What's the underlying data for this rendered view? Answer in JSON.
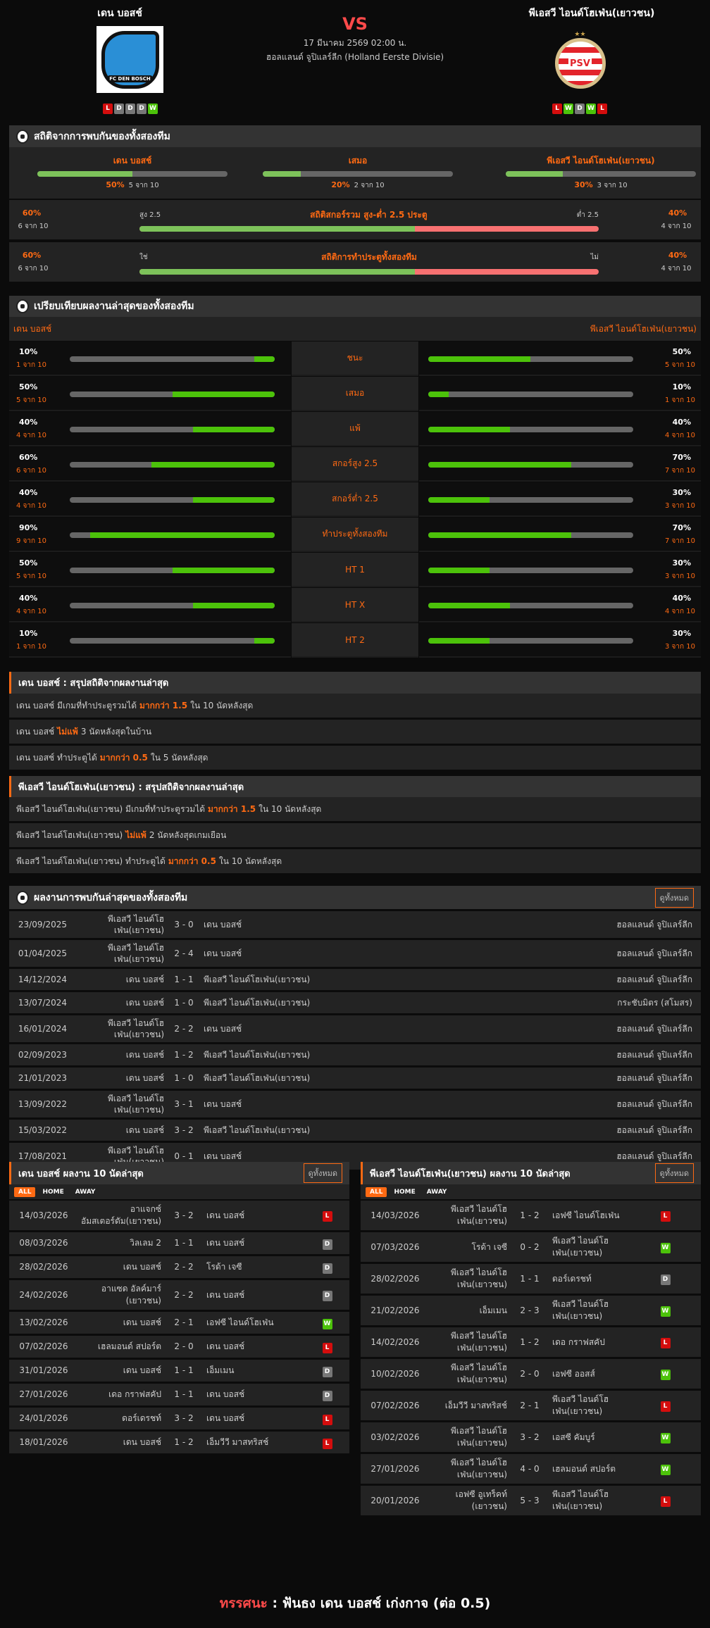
{
  "match": {
    "home": "เดน บอสช์",
    "away": "พีเอสวี ไอนด์โฮเฟ่น(เยาวชน)",
    "vs": "VS",
    "datetime": "17 มีนาคม 2569 02:00 น.",
    "league": "ฮอลแลนด์ จูปิแลร์ลีก (Holland Eerste Divisie)",
    "home_form": [
      "L",
      "D",
      "D",
      "D",
      "W"
    ],
    "away_form": [
      "L",
      "W",
      "D",
      "W",
      "L"
    ],
    "home_logo_text": "FC DEN BOSCH",
    "away_logo_text": "PSV"
  },
  "h2h_stats": {
    "title": "สถิติจากการพบกันของทั้งสองทีม",
    "items": [
      {
        "label": "เดน บอสช์",
        "pct": "50%",
        "count": "5 จาก 10",
        "value": 50
      },
      {
        "label": "เสมอ",
        "pct": "20%",
        "count": "2 จาก 10",
        "value": 20
      },
      {
        "label": "พีเอสวี ไอนด์โฮเฟ่น(เยาวชน)",
        "pct": "30%",
        "count": "3 จาก 10",
        "value": 30
      }
    ],
    "ou": {
      "title": "สถิติสกอร์รวม สูง-ต่ำ 2.5 ประตู",
      "left_label": "สูง 2.5",
      "right_label": "ต่ำ 2.5",
      "left_pct": "60%",
      "left_count": "6 จาก 10",
      "right_pct": "40%",
      "right_count": "4 จาก 10",
      "value": 60
    },
    "btts": {
      "title": "สถิติการทำประตูทั้งสองทีม",
      "left_label": "ใช่",
      "right_label": "ไม่",
      "left_pct": "60%",
      "left_count": "6 จาก 10",
      "right_pct": "40%",
      "right_count": "4 จาก 10",
      "value": 60
    }
  },
  "compare": {
    "title": "เปรียบเทียบผลงานล่าสุดของทั้งสองทีม",
    "home": "เดน บอสช์",
    "away": "พีเอสวี ไอนด์โฮเฟ่น(เยาวชน)",
    "rows": [
      {
        "label": "ชนะ",
        "l_pct": "10%",
        "l_cnt": "1 จาก 10",
        "l": 10,
        "r_pct": "50%",
        "r_cnt": "5 จาก 10",
        "r": 50
      },
      {
        "label": "เสมอ",
        "l_pct": "50%",
        "l_cnt": "5 จาก 10",
        "l": 50,
        "r_pct": "10%",
        "r_cnt": "1 จาก 10",
        "r": 10
      },
      {
        "label": "แพ้",
        "l_pct": "40%",
        "l_cnt": "4 จาก 10",
        "l": 40,
        "r_pct": "40%",
        "r_cnt": "4 จาก 10",
        "r": 40
      },
      {
        "label": "สกอร์สูง 2.5",
        "l_pct": "60%",
        "l_cnt": "6 จาก 10",
        "l": 60,
        "r_pct": "70%",
        "r_cnt": "7 จาก 10",
        "r": 70
      },
      {
        "label": "สกอร์ต่ำ 2.5",
        "l_pct": "40%",
        "l_cnt": "4 จาก 10",
        "l": 40,
        "r_pct": "30%",
        "r_cnt": "3 จาก 10",
        "r": 30
      },
      {
        "label": "ทำประตูทั้งสองทีม",
        "l_pct": "90%",
        "l_cnt": "9 จาก 10",
        "l": 90,
        "r_pct": "70%",
        "r_cnt": "7 จาก 10",
        "r": 70
      },
      {
        "label": "HT 1",
        "l_pct": "50%",
        "l_cnt": "5 จาก 10",
        "l": 50,
        "r_pct": "30%",
        "r_cnt": "3 จาก 10",
        "r": 30
      },
      {
        "label": "HT X",
        "l_pct": "40%",
        "l_cnt": "4 จาก 10",
        "l": 40,
        "r_pct": "40%",
        "r_cnt": "4 จาก 10",
        "r": 40
      },
      {
        "label": "HT 2",
        "l_pct": "10%",
        "l_cnt": "1 จาก 10",
        "l": 10,
        "r_pct": "30%",
        "r_cnt": "3 จาก 10",
        "r": 30
      }
    ]
  },
  "summary_home": {
    "title": "เดน บอสช์ : สรุปสถิติจากผลงานล่าสุด",
    "rows": [
      {
        "pre": "เดน บอสช์  มีเกมที่ทำประตูรวมได้",
        "hl": "มากกว่า 1.5",
        "post": "ใน 10 นัดหลังสุด"
      },
      {
        "pre": "เดน บอสช์",
        "hl": "ไม่แพ้",
        "post": "3  นัดหลังสุดในบ้าน"
      },
      {
        "pre": "เดน บอสช์  ทำประตูได้",
        "hl": "มากกว่า 0.5",
        "post": "ใน 5 นัดหลังสุด"
      }
    ]
  },
  "summary_away": {
    "title": "พีเอสวี ไอนด์โฮเฟ่น(เยาวชน) : สรุปสถิติจากผลงานล่าสุด",
    "rows": [
      {
        "pre": "พีเอสวี ไอนด์โฮเฟ่น(เยาวชน)  มีเกมที่ทำประตูรวมได้",
        "hl": "มากกว่า 1.5",
        "post": "ใน 10 นัดหลังสุด"
      },
      {
        "pre": "พีเอสวี ไอนด์โฮเฟ่น(เยาวชน)",
        "hl": "ไม่แพ้",
        "post": "2  นัดหลังสุดเกมเยือน"
      },
      {
        "pre": "พีเอสวี ไอนด์โฮเฟ่น(เยาวชน)  ทำประตูได้",
        "hl": "มากกว่า 0.5",
        "post": "ใน 10 นัดหลังสุด"
      }
    ]
  },
  "h2h": {
    "title": "ผลงานการพบกันล่าสุดของทั้งสองทีม",
    "view_all": "ดูทั้งหมด",
    "rows": [
      [
        "23/09/2025",
        "พีเอสวี ไอนด์โฮเฟ่น(เยาวชน)",
        "3 - 0",
        "เดน บอสช์",
        "ฮอลแลนด์ จูปิแลร์ลีก"
      ],
      [
        "01/04/2025",
        "พีเอสวี ไอนด์โฮเฟ่น(เยาวชน)",
        "2 - 4",
        "เดน บอสช์",
        "ฮอลแลนด์ จูปิแลร์ลีก"
      ],
      [
        "14/12/2024",
        "เดน บอสช์",
        "1 - 1",
        "พีเอสวี ไอนด์โฮเฟ่น(เยาวชน)",
        "ฮอลแลนด์ จูปิแลร์ลีก"
      ],
      [
        "13/07/2024",
        "เดน บอสช์",
        "1 - 0",
        "พีเอสวี ไอนด์โฮเฟ่น(เยาวชน)",
        "กระชับมิตร (สโมสร)"
      ],
      [
        "16/01/2024",
        "พีเอสวี ไอนด์โฮเฟ่น(เยาวชน)",
        "2 - 2",
        "เดน บอสช์",
        "ฮอลแลนด์ จูปิแลร์ลีก"
      ],
      [
        "02/09/2023",
        "เดน บอสช์",
        "1 - 2",
        "พีเอสวี ไอนด์โฮเฟ่น(เยาวชน)",
        "ฮอลแลนด์ จูปิแลร์ลีก"
      ],
      [
        "21/01/2023",
        "เดน บอสช์",
        "1 - 0",
        "พีเอสวี ไอนด์โฮเฟ่น(เยาวชน)",
        "ฮอลแลนด์ จูปิแลร์ลีก"
      ],
      [
        "13/09/2022",
        "พีเอสวี ไอนด์โฮเฟ่น(เยาวชน)",
        "3 - 1",
        "เดน บอสช์",
        "ฮอลแลนด์ จูปิแลร์ลีก"
      ],
      [
        "15/03/2022",
        "เดน บอสช์",
        "3 - 2",
        "พีเอสวี ไอนด์โฮเฟ่น(เยาวชน)",
        "ฮอลแลนด์ จูปิแลร์ลีก"
      ],
      [
        "17/08/2021",
        "พีเอสวี ไอนด์โฮเฟ่น(เยาวชน)",
        "0 - 1",
        "เดน บอสช์",
        "ฮอลแลนด์ จูปิแลร์ลีก"
      ]
    ]
  },
  "recent_home": {
    "title": "เดน บอสช์ ผลงาน 10 นัดล่าสุด",
    "view_all": "ดูทั้งหมด",
    "tabs": [
      "ALL",
      "HOME",
      "AWAY"
    ],
    "rows": [
      [
        "14/03/2026",
        "อาแจกซ์ อัมสเตอร์ดัม(เยาวชน)",
        "3 - 2",
        "เดน บอสช์",
        "L"
      ],
      [
        "08/03/2026",
        "วิลเลม 2",
        "1 - 1",
        "เดน บอสช์",
        "D"
      ],
      [
        "28/02/2026",
        "เดน บอสช์",
        "2 - 2",
        "โรด้า เจซี",
        "D"
      ],
      [
        "24/02/2026",
        "อาแซด อัลค์มาร์ (เยาวชน)",
        "2 - 2",
        "เดน บอสช์",
        "D"
      ],
      [
        "13/02/2026",
        "เดน บอสช์",
        "2 - 1",
        "เอฟซี ไอนด์โฮเฟ่น",
        "W"
      ],
      [
        "07/02/2026",
        "เฮลมอนด์ สปอร์ต",
        "2 - 0",
        "เดน บอสช์",
        "L"
      ],
      [
        "31/01/2026",
        "เดน บอสช์",
        "1 - 1",
        "เอ็มเมน",
        "D"
      ],
      [
        "27/01/2026",
        "เดอ กราฟสคัป",
        "1 - 1",
        "เดน บอสช์",
        "D"
      ],
      [
        "24/01/2026",
        "ดอร์เดรชท์",
        "3 - 2",
        "เดน บอสช์",
        "L"
      ],
      [
        "18/01/2026",
        "เดน บอสช์",
        "1 - 2",
        "เอ็มวีวี มาสทริสช์",
        "L"
      ]
    ]
  },
  "recent_away": {
    "title": "พีเอสวี ไอนด์โฮเฟ่น(เยาวชน) ผลงาน 10 นัดล่าสุด",
    "view_all": "ดูทั้งหมด",
    "tabs": [
      "ALL",
      "HOME",
      "AWAY"
    ],
    "rows": [
      [
        "14/03/2026",
        "พีเอสวี ไอนด์โฮเฟ่น(เยาวชน)",
        "1 - 2",
        "เอฟซี ไอนด์โฮเฟ่น",
        "L"
      ],
      [
        "07/03/2026",
        "โรด้า เจซี",
        "0 - 2",
        "พีเอสวี ไอนด์โฮเฟ่น(เยาวชน)",
        "W"
      ],
      [
        "28/02/2026",
        "พีเอสวี ไอนด์โฮเฟ่น(เยาวชน)",
        "1 - 1",
        "ดอร์เดรชท์",
        "D"
      ],
      [
        "21/02/2026",
        "เอ็มเมน",
        "2 - 3",
        "พีเอสวี ไอนด์โฮเฟ่น(เยาวชน)",
        "W"
      ],
      [
        "14/02/2026",
        "พีเอสวี ไอนด์โฮเฟ่น(เยาวชน)",
        "1 - 2",
        "เดอ กราฟสคัป",
        "L"
      ],
      [
        "10/02/2026",
        "พีเอสวี ไอนด์โฮเฟ่น(เยาวชน)",
        "2 - 0",
        "เอฟซี ออสส์",
        "W"
      ],
      [
        "07/02/2026",
        "เอ็มวีวี มาสทริสช์",
        "2 - 1",
        "พีเอสวี ไอนด์โฮเฟ่น(เยาวชน)",
        "L"
      ],
      [
        "03/02/2026",
        "พีเอสวี ไอนด์โฮเฟ่น(เยาวชน)",
        "3 - 2",
        "เอสซี คัมบูร์",
        "W"
      ],
      [
        "27/01/2026",
        "พีเอสวี ไอนด์โฮเฟ่น(เยาวชน)",
        "4 - 0",
        "เฮลมอนด์ สปอร์ต",
        "W"
      ],
      [
        "20/01/2026",
        "เอฟซี อูเทร็คท์ (เยาวชน)",
        "5 - 3",
        "พีเอสวี ไอนด์โฮเฟ่น(เยาวชน)",
        "L"
      ]
    ]
  },
  "verdict": {
    "label": "ทรรศนะ",
    "sep": ":",
    "text": "ฟันธง เดน บอสช์ เก่งกาจ (ต่อ 0.5)"
  },
  "colors": {
    "accent": "#ff6a13",
    "win": "#4cc20a",
    "loss": "#d40d0d",
    "draw": "#777777",
    "bar_green": "#7dc25a",
    "bar_red": "#f87171",
    "vs": "#ff4a4a"
  }
}
